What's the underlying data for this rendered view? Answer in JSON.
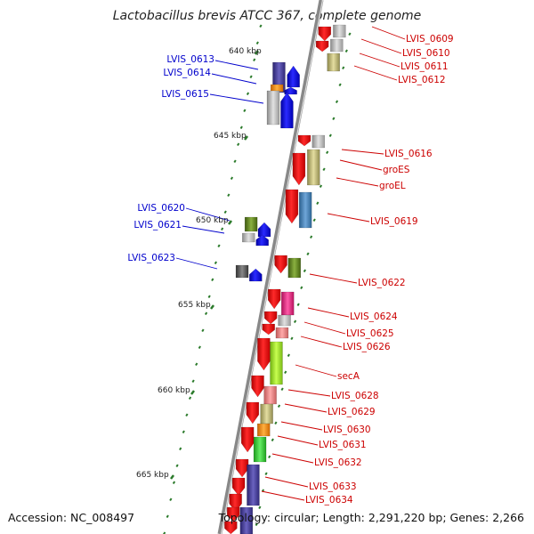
{
  "title": "Lactobacillus brevis ATCC 367, complete genome",
  "footer": {
    "accession": "Accession: NC_008497",
    "stats": "Topology: circular; Length: 2,291,220 bp; Genes: 2,266"
  },
  "scale_ticks": [
    "640 kbp",
    "645 kbp",
    "650 kbp",
    "655 kbp",
    "660 kbp",
    "665 kbp"
  ],
  "minus_strand_labels": [
    "LVIS_0613",
    "LVIS_0614",
    "LVIS_0615",
    "LVIS_0620",
    "LVIS_0621",
    "LVIS_0623"
  ],
  "plus_strand_labels": [
    "LVIS_0609",
    "LVIS_0610",
    "LVIS_0611",
    "LVIS_0612",
    "LVIS_0616",
    "groES",
    "groEL",
    "LVIS_0619",
    "LVIS_0622",
    "LVIS_0624",
    "LVIS_0625",
    "LVIS_0626",
    "secA",
    "LVIS_0628",
    "LVIS_0629",
    "LVIS_0630",
    "LVIS_0631",
    "LVIS_0632",
    "LVIS_0633",
    "LVIS_0634"
  ],
  "colors": {
    "plus_label": "#cc0000",
    "minus_label": "#0000cc",
    "forward_gene": "#ee0000",
    "reverse_gene": "#0000ee",
    "tick": "#2a7a2a",
    "backbone": "#888888"
  }
}
